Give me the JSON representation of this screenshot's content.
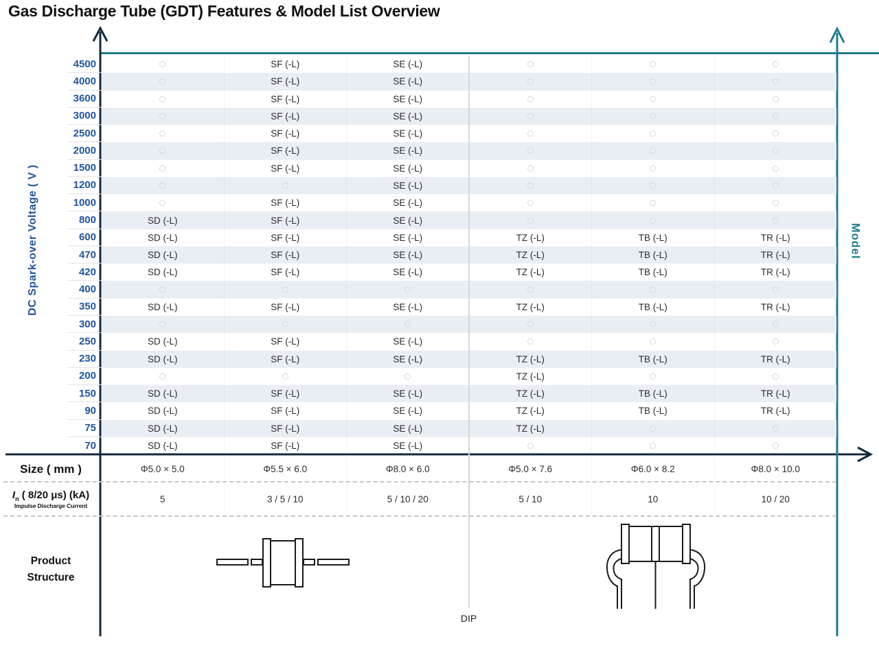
{
  "title": "Gas Discharge Tube (GDT) Features & Model List Overview",
  "chart_data": {
    "type": "table",
    "y_axis_label": "DC Spark-over Voltage ( V )",
    "right_axis_label": "Model",
    "model_columns": [
      "SD (-L)",
      "SF (-L)",
      "SE (-L)",
      "TZ (-L)",
      "TB (-L)",
      "TR (-L)"
    ],
    "rows": [
      {
        "v": "4500",
        "cells": [
          "",
          "SF (-L)",
          "SE (-L)",
          "",
          "",
          ""
        ]
      },
      {
        "v": "4000",
        "cells": [
          "",
          "SF (-L)",
          "SE (-L)",
          "",
          "",
          ""
        ]
      },
      {
        "v": "3600",
        "cells": [
          "",
          "SF (-L)",
          "SE (-L)",
          "",
          "",
          ""
        ]
      },
      {
        "v": "3000",
        "cells": [
          "",
          "SF (-L)",
          "SE (-L)",
          "",
          "",
          ""
        ]
      },
      {
        "v": "2500",
        "cells": [
          "",
          "SF (-L)",
          "SE (-L)",
          "",
          "",
          ""
        ]
      },
      {
        "v": "2000",
        "cells": [
          "",
          "SF (-L)",
          "SE (-L)",
          "",
          "",
          ""
        ]
      },
      {
        "v": "1500",
        "cells": [
          "",
          "SF (-L)",
          "SE (-L)",
          "",
          "",
          ""
        ]
      },
      {
        "v": "1200",
        "cells": [
          "",
          "",
          "SE (-L)",
          "",
          "",
          ""
        ]
      },
      {
        "v": "1000",
        "cells": [
          "",
          "SF (-L)",
          "SE (-L)",
          "",
          "",
          ""
        ]
      },
      {
        "v": "800",
        "cells": [
          "SD (-L)",
          "SF (-L)",
          "SE (-L)",
          "",
          "",
          ""
        ]
      },
      {
        "v": "600",
        "cells": [
          "SD (-L)",
          "SF (-L)",
          "SE (-L)",
          "TZ (-L)",
          "TB (-L)",
          "TR (-L)"
        ]
      },
      {
        "v": "470",
        "cells": [
          "SD (-L)",
          "SF (-L)",
          "SE (-L)",
          "TZ (-L)",
          "TB (-L)",
          "TR (-L)"
        ]
      },
      {
        "v": "420",
        "cells": [
          "SD (-L)",
          "SF (-L)",
          "SE (-L)",
          "TZ (-L)",
          "TB (-L)",
          "TR (-L)"
        ]
      },
      {
        "v": "400",
        "cells": [
          "",
          "",
          "",
          "",
          "",
          ""
        ]
      },
      {
        "v": "350",
        "cells": [
          "SD (-L)",
          "SF (-L)",
          "SE (-L)",
          "TZ (-L)",
          "TB (-L)",
          "TR (-L)"
        ]
      },
      {
        "v": "300",
        "cells": [
          "",
          "",
          "",
          "",
          "",
          ""
        ]
      },
      {
        "v": "250",
        "cells": [
          "SD (-L)",
          "SF (-L)",
          "SE (-L)",
          "",
          "",
          ""
        ]
      },
      {
        "v": "230",
        "cells": [
          "SD (-L)",
          "SF (-L)",
          "SE (-L)",
          "TZ (-L)",
          "TB (-L)",
          "TR (-L)"
        ]
      },
      {
        "v": "200",
        "cells": [
          "",
          "",
          "",
          "TZ (-L)",
          "",
          ""
        ]
      },
      {
        "v": "150",
        "cells": [
          "SD (-L)",
          "SF (-L)",
          "SE (-L)",
          "TZ (-L)",
          "TB (-L)",
          "TR (-L)"
        ]
      },
      {
        "v": "90",
        "cells": [
          "SD (-L)",
          "SF (-L)",
          "SE (-L)",
          "TZ (-L)",
          "TB (-L)",
          "TR (-L)"
        ]
      },
      {
        "v": "75",
        "cells": [
          "SD (-L)",
          "SF (-L)",
          "SE (-L)",
          "TZ (-L)",
          "",
          ""
        ]
      },
      {
        "v": "70",
        "cells": [
          "SD (-L)",
          "SF (-L)",
          "SE (-L)",
          "",
          "",
          ""
        ]
      }
    ],
    "size_row": {
      "label": "Size ( mm )",
      "values": [
        "Φ5.0 × 5.0",
        "Φ5.5 × 6.0",
        "Φ8.0 × 6.0",
        "Φ5.0 × 7.6",
        "Φ6.0 × 8.2",
        "Φ8.0 × 10.0"
      ]
    },
    "current_row": {
      "label_prefix": "I",
      "label_sub": "n",
      "label_rest": " ( 8/20 μs) (kA)",
      "caption": "Impulse Discharge Current",
      "values": [
        "5",
        "3 / 5 / 10",
        "5 / 10 / 20",
        "5 / 10",
        "10",
        "10 / 20"
      ]
    },
    "structure_label": "Product Structure",
    "package_label": "DIP"
  },
  "colors": {
    "accent_teal": "#1e7b8b",
    "axis_navy": "#15293d",
    "label_blue": "#2155a0",
    "row_stripe": "#e8eef4"
  }
}
